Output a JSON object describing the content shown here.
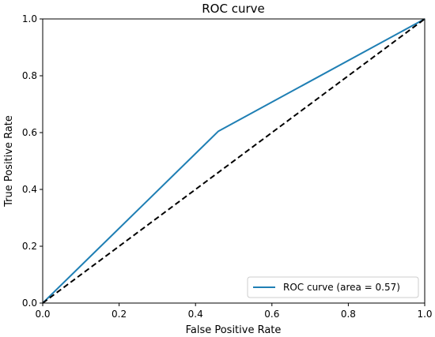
{
  "chart_data": {
    "type": "line",
    "title": "ROC curve",
    "xlabel": "False Positive Rate",
    "ylabel": "True Positive Rate",
    "xlim": [
      0.0,
      1.0
    ],
    "ylim": [
      0.0,
      1.0
    ],
    "xticks": [
      "0.0",
      "0.2",
      "0.4",
      "0.6",
      "0.8",
      "1.0"
    ],
    "yticks": [
      "0.0",
      "0.2",
      "0.4",
      "0.6",
      "0.8",
      "1.0"
    ],
    "grid": false,
    "legend_position": "lower right",
    "series": [
      {
        "name": "ROC curve (area = 0.57)",
        "color": "#1f7fb4",
        "style": "solid",
        "x": [
          0.0,
          0.46,
          1.0
        ],
        "y": [
          0.0,
          0.605,
          1.0
        ]
      },
      {
        "color": "#000000",
        "style": "dashed",
        "x": [
          0.0,
          1.0
        ],
        "y": [
          0.0,
          1.0
        ]
      }
    ]
  }
}
